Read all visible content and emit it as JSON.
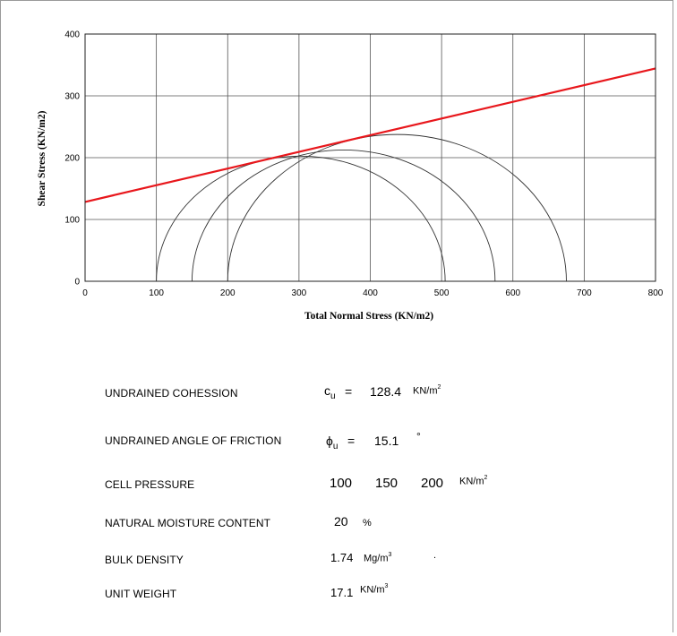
{
  "chart_data": {
    "type": "scatter",
    "xlabel": "Total Normal Stress (KN/m2)",
    "ylabel": "Shear Stress (KN/m2)",
    "xlim": [
      0,
      800
    ],
    "ylim": [
      0,
      400
    ],
    "x_ticks": [
      "0",
      "100",
      "200",
      "300",
      "400",
      "500",
      "600",
      "700",
      "800"
    ],
    "y_ticks": [
      "0",
      "100",
      "200",
      "300",
      "400"
    ],
    "grid": true,
    "mohr_circles": [
      {
        "sigma3": 100,
        "sigma1": 505
      },
      {
        "sigma3": 150,
        "sigma1": 575
      },
      {
        "sigma3": 200,
        "sigma1": 675
      }
    ],
    "envelope": {
      "intercept": 128.4,
      "angle_deg": 15.1,
      "x": [
        0,
        800
      ],
      "y": [
        128.4,
        344.3
      ],
      "color": "#e8171c"
    },
    "circle_color": "#333333",
    "grid_color": "#555555"
  },
  "results": {
    "cohesion": {
      "label": "UNDRAINED COHESSION",
      "symbol": "c",
      "symbol_sub": "u",
      "equals": "=",
      "value": "128.4",
      "unit": "KN/m",
      "unit_sup": "2"
    },
    "friction": {
      "label": "UNDRAINED ANGLE OF FRICTION",
      "symbol": "ϕ",
      "symbol_sub": "u",
      "equals": "=",
      "value": "15.1",
      "unit": "°"
    },
    "cell_pressure": {
      "label": "CELL PRESSURE",
      "values": [
        "100",
        "150",
        "200"
      ],
      "unit": "KN/m",
      "unit_sup": "2"
    },
    "moisture": {
      "label": "NATURAL MOISTURE CONTENT",
      "value": "20",
      "unit": "%"
    },
    "bulk_density": {
      "label": "BULK DENSITY",
      "value": "1.74",
      "unit": "Mg/m",
      "unit_sup": "3",
      "trailing": "."
    },
    "unit_weight": {
      "label": "UNIT WEIGHT",
      "value": "17.1",
      "unit": "KN/m",
      "unit_sup": "3"
    }
  }
}
